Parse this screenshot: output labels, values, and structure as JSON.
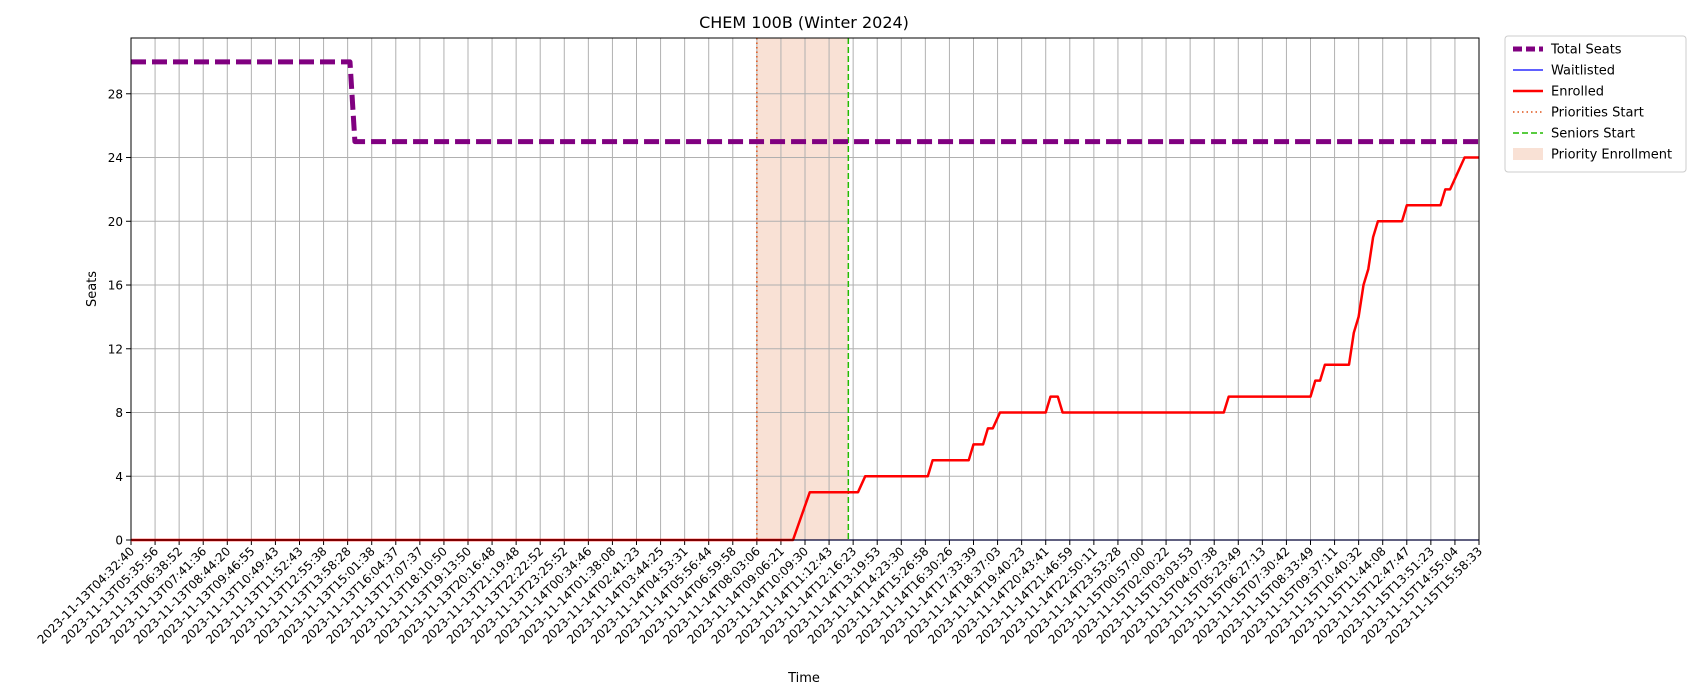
{
  "chart_data": {
    "type": "line",
    "title": "CHEM 100B (Winter 2024)",
    "xlabel": "Time",
    "ylabel": "Seats",
    "ylim": [
      0,
      31.5
    ],
    "yticks": [
      0,
      4,
      8,
      12,
      16,
      20,
      24,
      28
    ],
    "grid": true,
    "legend_position": "outside-right",
    "xticks": [
      "2023-11-13T04:32:40",
      "2023-11-13T05:35:56",
      "2023-11-13T06:38:52",
      "2023-11-13T07:41:36",
      "2023-11-13T08:44:20",
      "2023-11-13T09:46:55",
      "2023-11-13T10:49:43",
      "2023-11-13T11:52:43",
      "2023-11-13T12:55:38",
      "2023-11-13T13:58:28",
      "2023-11-13T15:01:38",
      "2023-11-13T16:04:37",
      "2023-11-13T17:07:37",
      "2023-11-13T18:10:50",
      "2023-11-13T19:13:50",
      "2023-11-13T20:16:48",
      "2023-11-13T21:19:48",
      "2023-11-13T22:22:52",
      "2023-11-13T23:25:52",
      "2023-11-14T00:34:46",
      "2023-11-14T01:38:08",
      "2023-11-14T02:41:23",
      "2023-11-14T03:44:25",
      "2023-11-14T04:53:31",
      "2023-11-14T05:56:44",
      "2023-11-14T06:59:58",
      "2023-11-14T08:03:06",
      "2023-11-14T09:06:21",
      "2023-11-14T10:09:30",
      "2023-11-14T11:12:43",
      "2023-11-14T12:16:23",
      "2023-11-14T13:19:53",
      "2023-11-14T14:23:30",
      "2023-11-14T15:26:58",
      "2023-11-14T16:30:26",
      "2023-11-14T17:33:39",
      "2023-11-14T18:37:03",
      "2023-11-14T19:40:23",
      "2023-11-14T20:43:41",
      "2023-11-14T21:46:59",
      "2023-11-14T22:50:11",
      "2023-11-14T23:53:28",
      "2023-11-15T00:57:00",
      "2023-11-15T02:00:22",
      "2023-11-15T03:03:53",
      "2023-11-15T04:07:38",
      "2023-11-15T05:23:49",
      "2023-11-15T06:27:13",
      "2023-11-15T07:30:42",
      "2023-11-15T08:33:49",
      "2023-11-15T09:37:11",
      "2023-11-15T10:40:32",
      "2023-11-15T11:44:08",
      "2023-11-15T12:47:47",
      "2023-11-15T13:51:23",
      "2023-11-15T14:55:04",
      "2023-11-15T15:58:33"
    ],
    "series": [
      {
        "name": "Total Seats",
        "color": "#800080",
        "style": "dashed-thick",
        "points": [
          [
            0,
            30
          ],
          [
            9.1,
            30
          ],
          [
            9.3,
            25
          ],
          [
            56,
            25
          ]
        ]
      },
      {
        "name": "Waitlisted",
        "color": "#0000ff",
        "style": "solid-thin",
        "points": [
          [
            0,
            0
          ],
          [
            56,
            0
          ]
        ]
      },
      {
        "name": "Enrolled",
        "color": "#ff0000",
        "style": "solid",
        "points": [
          [
            0,
            0
          ],
          [
            27.5,
            0
          ],
          [
            28.2,
            3
          ],
          [
            30.2,
            3
          ],
          [
            30.5,
            4
          ],
          [
            33.1,
            4
          ],
          [
            33.3,
            5
          ],
          [
            34.8,
            5
          ],
          [
            35.0,
            6
          ],
          [
            35.4,
            6
          ],
          [
            35.6,
            7
          ],
          [
            35.8,
            7
          ],
          [
            36.1,
            8
          ],
          [
            38.0,
            8
          ],
          [
            38.2,
            9
          ],
          [
            38.5,
            9
          ],
          [
            38.7,
            8
          ],
          [
            45.4,
            8
          ],
          [
            45.6,
            9
          ],
          [
            49.0,
            9
          ],
          [
            49.2,
            10
          ],
          [
            49.4,
            10
          ],
          [
            49.6,
            11
          ],
          [
            50.6,
            11
          ],
          [
            50.8,
            13
          ],
          [
            51.0,
            14
          ],
          [
            51.2,
            16
          ],
          [
            51.4,
            17
          ],
          [
            51.6,
            19
          ],
          [
            51.8,
            20
          ],
          [
            52.8,
            20
          ],
          [
            53.0,
            21
          ],
          [
            54.4,
            21
          ],
          [
            54.6,
            22
          ],
          [
            54.8,
            22
          ],
          [
            55.1,
            23
          ],
          [
            55.4,
            24
          ],
          [
            56,
            24
          ]
        ]
      }
    ],
    "markers": [
      {
        "name": "Priorities Start",
        "x": 26.0,
        "color": "#e0551a",
        "style": "dotted"
      },
      {
        "name": "Seniors Start",
        "x": 29.8,
        "color": "#22bb00",
        "style": "dashed"
      }
    ],
    "shaded_regions": [
      {
        "name": "Priority Enrollment",
        "x_start": 26.0,
        "x_end": 29.8,
        "color": "#f4c4ac"
      }
    ]
  }
}
